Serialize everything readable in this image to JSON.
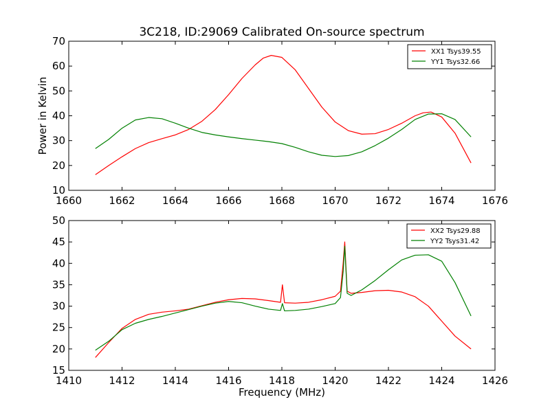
{
  "title": "3C218, ID:29069 Calibrated On-source spectrum",
  "chart_data": [
    {
      "type": "line",
      "ylabel": "Power in Kelvin",
      "xlabel": "",
      "xlim": [
        1660,
        1676
      ],
      "ylim": [
        10,
        70
      ],
      "xticks": [
        "1660",
        "1662",
        "1664",
        "1666",
        "1668",
        "1670",
        "1672",
        "1674",
        "1676"
      ],
      "yticks": [
        "10",
        "20",
        "30",
        "40",
        "50",
        "60",
        "70"
      ],
      "grid": false,
      "legend": "top-right",
      "series": [
        {
          "name": "XX1 Tsys39.55",
          "color": "#ff0000",
          "x": [
            1661.0,
            1661.5,
            1662.0,
            1662.5,
            1663.0,
            1663.5,
            1664.0,
            1664.5,
            1665.0,
            1665.5,
            1666.0,
            1666.5,
            1667.0,
            1667.3,
            1667.6,
            1668.0,
            1668.5,
            1669.0,
            1669.5,
            1670.0,
            1670.5,
            1671.0,
            1671.5,
            1672.0,
            1672.5,
            1673.0,
            1673.3,
            1673.6,
            1674.0,
            1674.5,
            1675.1
          ],
          "y": [
            16.3,
            20.0,
            23.5,
            26.8,
            29.2,
            30.8,
            32.3,
            34.5,
            37.8,
            42.5,
            48.5,
            55.0,
            60.5,
            63.2,
            64.3,
            63.5,
            58.5,
            51.0,
            43.5,
            37.5,
            34.0,
            32.6,
            32.8,
            34.5,
            37.0,
            40.0,
            41.2,
            41.5,
            39.5,
            33.0,
            21.0
          ]
        },
        {
          "name": "YY1 Tsys32.66",
          "color": "#008000",
          "x": [
            1661.0,
            1661.5,
            1662.0,
            1662.5,
            1663.0,
            1663.5,
            1664.0,
            1664.5,
            1665.0,
            1665.5,
            1666.0,
            1666.5,
            1667.0,
            1667.5,
            1668.0,
            1668.5,
            1669.0,
            1669.5,
            1670.0,
            1670.5,
            1671.0,
            1671.5,
            1672.0,
            1672.5,
            1673.0,
            1673.5,
            1674.0,
            1674.5,
            1675.1
          ],
          "y": [
            26.8,
            30.5,
            35.0,
            38.3,
            39.3,
            38.8,
            37.0,
            35.0,
            33.3,
            32.3,
            31.5,
            30.8,
            30.2,
            29.6,
            28.8,
            27.3,
            25.5,
            24.1,
            23.6,
            24.0,
            25.5,
            28.0,
            31.0,
            34.5,
            38.5,
            40.7,
            40.8,
            38.5,
            31.5
          ]
        }
      ]
    },
    {
      "type": "line",
      "ylabel": "",
      "xlabel": "Frequency (MHz)",
      "xlim": [
        1410,
        1426
      ],
      "ylim": [
        15,
        50
      ],
      "xticks": [
        "1410",
        "1412",
        "1414",
        "1416",
        "1418",
        "1420",
        "1422",
        "1424",
        "1426"
      ],
      "yticks": [
        "15",
        "20",
        "25",
        "30",
        "35",
        "40",
        "45",
        "50"
      ],
      "grid": false,
      "legend": "top-right",
      "series": [
        {
          "name": "XX2 Tsys29.88",
          "color": "#ff0000",
          "x": [
            1411.0,
            1411.5,
            1412.0,
            1412.5,
            1413.0,
            1413.5,
            1414.0,
            1414.5,
            1415.0,
            1415.5,
            1416.0,
            1416.5,
            1417.0,
            1417.5,
            1417.95,
            1418.02,
            1418.1,
            1418.5,
            1419.0,
            1419.5,
            1420.0,
            1420.2,
            1420.3,
            1420.36,
            1420.45,
            1420.6,
            1421.0,
            1421.5,
            1422.0,
            1422.5,
            1423.0,
            1423.5,
            1424.0,
            1424.5,
            1425.1
          ],
          "y": [
            18.0,
            21.5,
            24.8,
            26.9,
            28.1,
            28.6,
            28.9,
            29.3,
            30.1,
            30.9,
            31.5,
            31.8,
            31.7,
            31.3,
            30.9,
            35.0,
            30.8,
            30.7,
            30.9,
            31.5,
            32.3,
            33.5,
            40.0,
            45.0,
            33.5,
            33.0,
            33.2,
            33.6,
            33.7,
            33.3,
            32.2,
            30.0,
            26.5,
            23.0,
            20.0
          ]
        },
        {
          "name": "YY2 Tsys31.42",
          "color": "#008000",
          "x": [
            1411.0,
            1411.5,
            1412.0,
            1412.5,
            1413.0,
            1413.5,
            1414.0,
            1414.5,
            1415.0,
            1415.5,
            1416.0,
            1416.5,
            1417.0,
            1417.5,
            1417.95,
            1418.02,
            1418.1,
            1418.5,
            1419.0,
            1419.5,
            1420.0,
            1420.2,
            1420.3,
            1420.36,
            1420.45,
            1420.6,
            1421.0,
            1421.5,
            1422.0,
            1422.5,
            1423.0,
            1423.5,
            1424.0,
            1424.5,
            1425.1
          ],
          "y": [
            19.7,
            21.8,
            24.5,
            26.0,
            26.9,
            27.6,
            28.4,
            29.2,
            30.0,
            30.7,
            31.1,
            30.8,
            30.0,
            29.3,
            29.0,
            30.6,
            28.9,
            29.0,
            29.3,
            29.9,
            30.6,
            32.0,
            38.0,
            44.0,
            33.0,
            32.5,
            33.8,
            36.0,
            38.5,
            40.8,
            41.9,
            42.0,
            40.5,
            35.5,
            27.7
          ]
        }
      ]
    }
  ]
}
